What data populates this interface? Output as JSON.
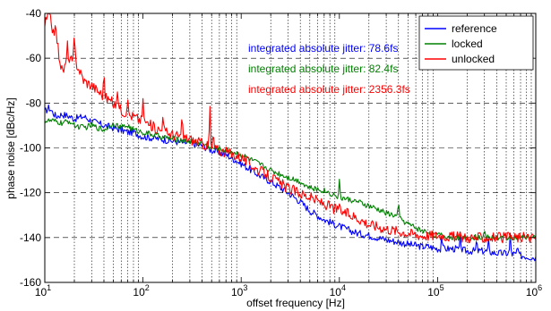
{
  "chart_data": {
    "type": "line",
    "xscale": "log",
    "xlim": [
      10,
      1000000
    ],
    "ylim": [
      -160,
      -40
    ],
    "xlabel": "offset frequency [Hz]",
    "ylabel": "phase noise [dBc/Hz]",
    "x_ticks": [
      {
        "base": "10",
        "exp": "1"
      },
      {
        "base": "10",
        "exp": "2"
      },
      {
        "base": "10",
        "exp": "3"
      },
      {
        "base": "10",
        "exp": "4"
      },
      {
        "base": "10",
        "exp": "5"
      },
      {
        "base": "10",
        "exp": "6"
      }
    ],
    "y_ticks": [
      "-40",
      "-60",
      "-80",
      "-100",
      "-120",
      "-140",
      "-160"
    ],
    "grid": true,
    "legend_position": "top-right",
    "annotations": [
      {
        "text": "integrated absolute jitter: 78.6fs",
        "color": "#0000ff"
      },
      {
        "text": "integrated absolute jitter: 82.4fs",
        "color": "#008000"
      },
      {
        "text": "integrated absolute jitter: 2356.3fs",
        "color": "#ff0000"
      }
    ],
    "series": [
      {
        "name": "reference",
        "color": "#0000ff",
        "x": [
          10,
          11,
          12,
          13,
          15,
          18,
          20,
          25,
          30,
          40,
          50,
          60,
          70,
          80,
          100,
          150,
          200,
          300,
          400,
          500,
          700,
          1000,
          1500,
          2000,
          3000,
          4000,
          5000,
          7000,
          10000,
          15000,
          20000,
          30000,
          40000,
          50000,
          70000,
          80000,
          100000,
          150000,
          200000,
          300000,
          400000,
          500000,
          700000,
          1000000
        ],
        "y": [
          -84,
          -82,
          -84,
          -86,
          -85,
          -86,
          -87,
          -86,
          -88,
          -90,
          -91,
          -92,
          -93,
          -93,
          -95,
          -96,
          -97,
          -98,
          -99,
          -101,
          -103,
          -107,
          -112,
          -115,
          -120,
          -124,
          -128,
          -132,
          -135,
          -138,
          -139,
          -141,
          -142,
          -143,
          -144,
          -144,
          -145,
          -145,
          -146,
          -146,
          -147,
          -147,
          -148,
          -149
        ]
      },
      {
        "name": "locked",
        "color": "#008000",
        "x": [
          10,
          12,
          15,
          18,
          20,
          25,
          30,
          40,
          50,
          60,
          70,
          80,
          100,
          150,
          200,
          300,
          400,
          500,
          700,
          1000,
          1500,
          2000,
          3000,
          4000,
          5000,
          7000,
          10000,
          15000,
          20000,
          30000,
          40000,
          50000,
          70000,
          100000,
          150000,
          200000,
          300000,
          500000,
          700000,
          1000000
        ],
        "y": [
          -88,
          -88,
          -89,
          -88,
          -90,
          -91,
          -90,
          -92,
          -89,
          -91,
          -90,
          -92,
          -93,
          -95,
          -96,
          -97,
          -98,
          -100,
          -101,
          -103,
          -107,
          -110,
          -113,
          -115,
          -118,
          -119,
          -122,
          -124,
          -126,
          -129,
          -131,
          -134,
          -137,
          -139,
          -140,
          -140,
          -140,
          -140,
          -140,
          -140
        ]
      },
      {
        "name": "unlocked",
        "color": "#ff0000",
        "x": [
          10,
          11,
          12,
          13,
          14,
          15,
          17,
          20,
          25,
          30,
          40,
          50,
          60,
          70,
          80,
          100,
          120,
          150,
          200,
          300,
          400,
          500,
          700,
          1000,
          1500,
          2000,
          3000,
          5000,
          7000,
          10000,
          15000,
          20000,
          30000,
          50000,
          70000,
          100000,
          200000,
          500000,
          1000000
        ],
        "y": [
          -45,
          -40,
          -47,
          -48,
          -59,
          -66,
          -62,
          -60,
          -70,
          -72,
          -77,
          -80,
          -83,
          -85,
          -86,
          -88,
          -90,
          -92,
          -94,
          -96,
          -98,
          -100,
          -102,
          -104,
          -110,
          -113,
          -118,
          -122,
          -125,
          -128,
          -131,
          -134,
          -136,
          -138,
          -139,
          -139,
          -140,
          -140,
          -140
        ]
      }
    ],
    "peaks": [
      {
        "series": "reference",
        "x": 110000,
        "y": -139
      },
      {
        "series": "reference",
        "x": 170000,
        "y": -139
      },
      {
        "series": "reference",
        "x": 250000,
        "y": -140
      },
      {
        "series": "reference",
        "x": 330000,
        "y": -140
      },
      {
        "series": "reference",
        "x": 550000,
        "y": -138
      },
      {
        "series": "reference",
        "x": 650000,
        "y": -143
      },
      {
        "series": "locked",
        "x": 3300,
        "y": -122
      },
      {
        "series": "locked",
        "x": 5000,
        "y": -118
      },
      {
        "series": "locked",
        "x": 6700,
        "y": -128
      },
      {
        "series": "locked",
        "x": 10000,
        "y": -114
      },
      {
        "series": "locked",
        "x": 14000,
        "y": -124
      },
      {
        "series": "locked",
        "x": 40000,
        "y": -123
      },
      {
        "series": "locked",
        "x": 85000,
        "y": -139
      },
      {
        "series": "locked",
        "x": 300000,
        "y": -136
      },
      {
        "series": "unlocked",
        "x": 17,
        "y": -52
      },
      {
        "series": "unlocked",
        "x": 20,
        "y": -48
      },
      {
        "series": "unlocked",
        "x": 40,
        "y": -65
      },
      {
        "series": "unlocked",
        "x": 55,
        "y": -75
      },
      {
        "series": "unlocked",
        "x": 70,
        "y": -78
      },
      {
        "series": "unlocked",
        "x": 100,
        "y": -78
      },
      {
        "series": "unlocked",
        "x": 160,
        "y": -85
      },
      {
        "series": "unlocked",
        "x": 250,
        "y": -84
      },
      {
        "series": "unlocked",
        "x": 480,
        "y": -79
      },
      {
        "series": "unlocked",
        "x": 520,
        "y": -92
      },
      {
        "series": "unlocked",
        "x": 10000,
        "y": -125
      },
      {
        "series": "unlocked",
        "x": 110000,
        "y": -144
      }
    ]
  }
}
